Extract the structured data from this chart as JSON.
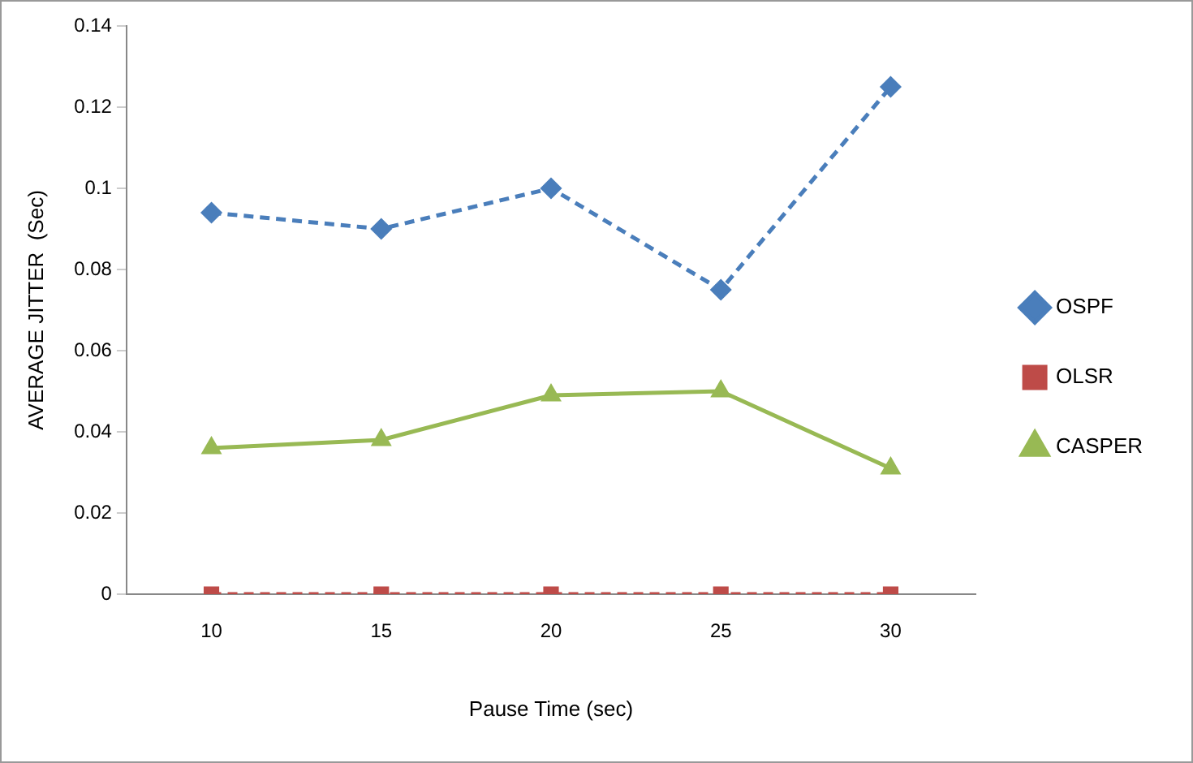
{
  "chart_data": {
    "type": "line",
    "xlabel": "Pause Time (sec)",
    "ylabel": "AVERAGE JITTER  (Sec)",
    "categories": [
      "10",
      "15",
      "20",
      "25",
      "30"
    ],
    "series": [
      {
        "name": "OSPF",
        "color": "#4a7ebb",
        "marker": "diamond",
        "line_style": "dashed",
        "values": [
          0.094,
          0.09,
          0.1,
          0.075,
          0.125
        ]
      },
      {
        "name": "OLSR",
        "color": "#be4b48",
        "marker": "square",
        "line_style": "dashed",
        "values": [
          0,
          0,
          0,
          0,
          0
        ]
      },
      {
        "name": "CASPER",
        "color": "#98b954",
        "marker": "triangle",
        "line_style": "solid",
        "values": [
          0.036,
          0.038,
          0.049,
          0.05,
          0.031
        ]
      }
    ],
    "ylim": [
      0,
      0.14
    ],
    "yticks": [
      0,
      0.02,
      0.04,
      0.06,
      0.08,
      0.1,
      0.12,
      0.14
    ],
    "grid": false,
    "legend": "right"
  }
}
